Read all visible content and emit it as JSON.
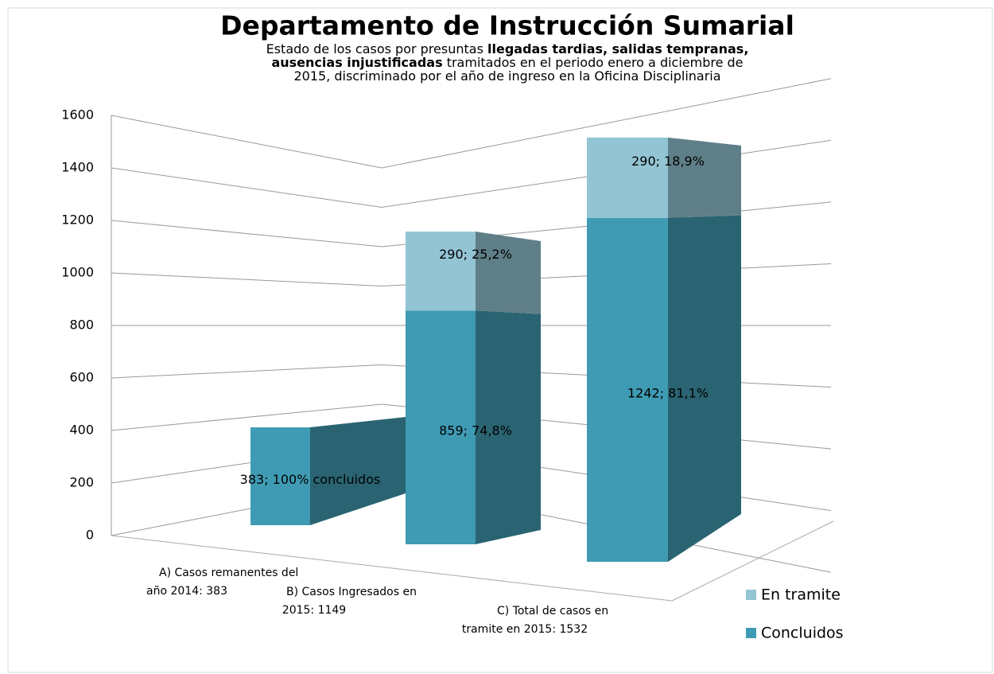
{
  "chart_data": {
    "type": "bar",
    "stacked": true,
    "title": "Departamento de Instrucción Sumarial",
    "subtitle_lines": [
      [
        {
          "text": "Estado de los casos  por presuntas ",
          "bold": false
        },
        {
          "text": "llegadas tardias, salidas tempranas,",
          "bold": true
        }
      ],
      [
        {
          "text": "ausencias injustificadas",
          "bold": true
        },
        {
          "text": " tramitados en el periodo enero a  diciembre de",
          "bold": false
        }
      ],
      [
        {
          "text": "2015, discriminado por  el año de ingreso en la Oficina Disciplinaria",
          "bold": false
        }
      ]
    ],
    "categories": [
      [
        "A) Casos remanentes del",
        "año 2014:    383"
      ],
      [
        "B) Casos Ingresados en",
        "2015:  1149"
      ],
      [
        "C) Total de casos en",
        "tramite en 2015:  1532"
      ]
    ],
    "series": [
      {
        "name": "Concluidos",
        "color": "#3f9bb3",
        "side_color": "#2a6472",
        "values": [
          383,
          859,
          1242
        ],
        "value_labels": [
          "383; 100% concluidos",
          "859; 74,8%",
          "1242; 81,1%"
        ]
      },
      {
        "name": "En tramite",
        "color": "#93c4d4",
        "side_color": "#5f7f88",
        "values": [
          null,
          290,
          290
        ],
        "value_labels": [
          null,
          "290; 25,2%",
          "290; 18,9%"
        ]
      }
    ],
    "ylim": [
      0,
      1600
    ],
    "yticks": [
      0,
      200,
      400,
      600,
      800,
      1000,
      1200,
      1400,
      1600
    ],
    "grid": true,
    "legend": "right"
  }
}
